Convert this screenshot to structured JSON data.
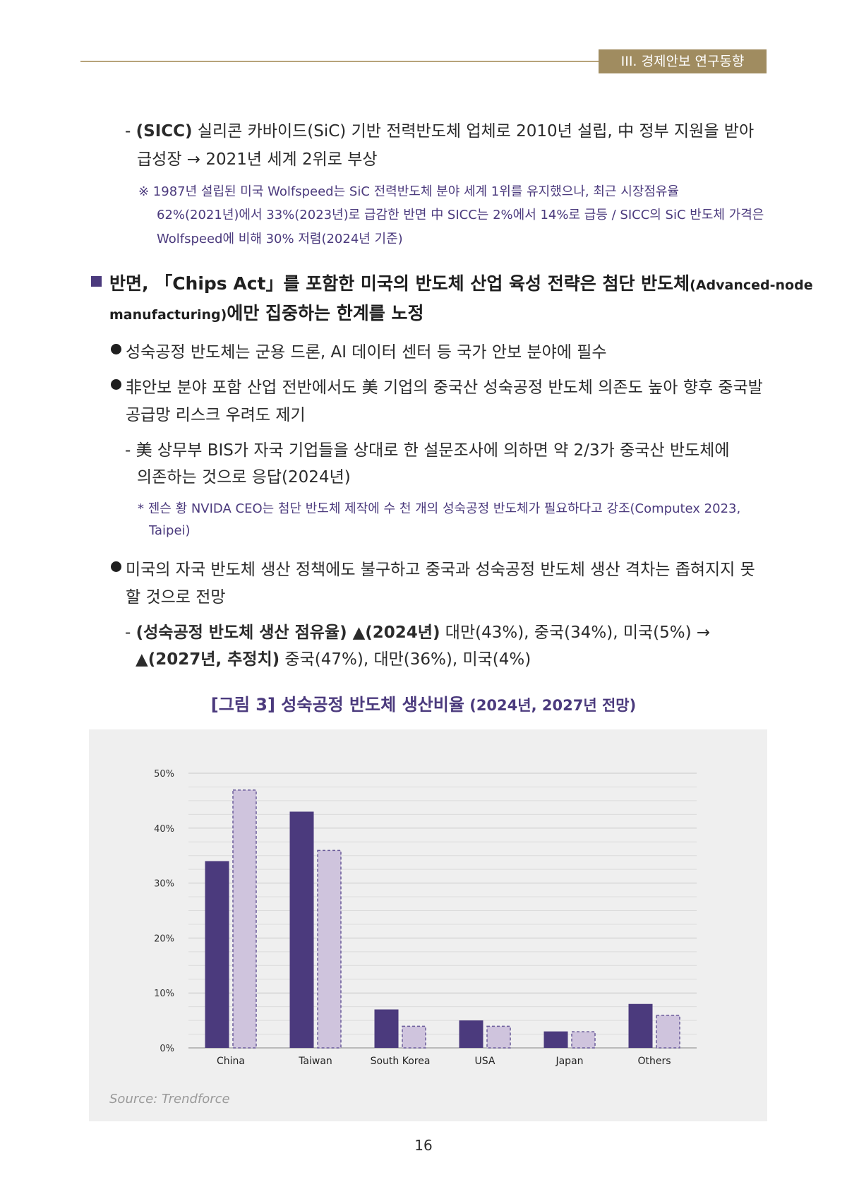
{
  "header": {
    "section_tag": "III. 경제안보 연구동향"
  },
  "sicc": {
    "line1_prefix": "- ",
    "line1_bold": "(SICC)",
    "line1_rest": " 실리콘 카바이드(SiC) 기반 전력반도체 업체로 2010년 설립, 中 정부 지원을 받아",
    "line2": "급성장 → 2021년 세계 2위로 부상",
    "note1": "※ 1987년 설립된 미국 Wolfspeed는 SiC 전력반도체 분야 세계 1위를 유지했으나, 최근 시장점유율",
    "note2": "62%(2021년)에서 33%(2023년)로 급감한 반면 中 SICC는 2%에서 14%로 급등 / SICC의 SiC 반도체 가격은",
    "note3": "Wolfspeed에 비해 30% 저렴(2024년 기준)"
  },
  "main_point": {
    "line1_a": "반면, 「Chips Act」를 포함한 미국의 반도체 산업 육성 전략은 첨단 반도체",
    "line1_b": "(Advanced-node",
    "line2_a": "manufacturing)",
    "line2_b": "에만 집중하는 한계를 노정"
  },
  "bullets": {
    "b1": "성숙공정 반도체는 군용 드론, AI 데이터 센터 등 국가 안보 분야에 필수",
    "b2_line1": "非안보 분야 포함 산업 전반에서도 美 기업의 중국산 성숙공정 반도체 의존도 높아 향후 중국발",
    "b2_line2": "공급망 리스크 우려도 제기",
    "b2_sub1": "- 美 상무부 BIS가 자국 기업들을 상대로 한 설문조사에 의하면 약 2/3가 중국산 반도체에",
    "b2_sub2": "의존하는 것으로 응답(2024년)",
    "b2_note1": "* 젠슨 황 NVIDA CEO는 첨단 반도체 제작에 수 천 개의 성숙공정 반도체가 필요하다고 강조(Computex 2023,",
    "b2_note2": "Taipei)",
    "b3_line1": "미국의 자국 반도체 생산 정책에도 불구하고 중국과 성숙공정 반도체 생산 격차는 좁혀지지 못",
    "b3_line2": "할 것으로 전망",
    "b3_sub1_bold": "(성숙공정 반도체 생산 점유율) ▲(2024년)",
    "b3_sub1_rest": " 대만(43%), 중국(34%), 미국(5%) →",
    "b3_sub2_bold": "▲(2027년, 추정치)",
    "b3_sub2_rest": " 중국(47%), 대만(36%), 미국(4%)",
    "dash": "-"
  },
  "figure": {
    "title_main": "[그림 3] 성숙공정 반도체 생산비율",
    "title_sub": " (2024년, 2027년 전망)",
    "source": "Source: Trendforce"
  },
  "chart_data": {
    "type": "bar",
    "categories": [
      "China",
      "Taiwan",
      "South Korea",
      "USA",
      "Japan",
      "Others"
    ],
    "series": [
      {
        "values": [
          34,
          43,
          7,
          5,
          3,
          8
        ]
      },
      {
        "values": [
          47,
          36,
          4,
          4,
          3,
          6
        ]
      }
    ],
    "ylim": [
      0,
      50
    ],
    "yticks": [
      "0%",
      "10%",
      "20%",
      "30%",
      "40%",
      "50%"
    ],
    "grid": true,
    "colors": {
      "series1": "#4b3a7d",
      "series2": "#cfc4dd",
      "series2_border": "#6a5b9a"
    }
  },
  "page_number": "16"
}
